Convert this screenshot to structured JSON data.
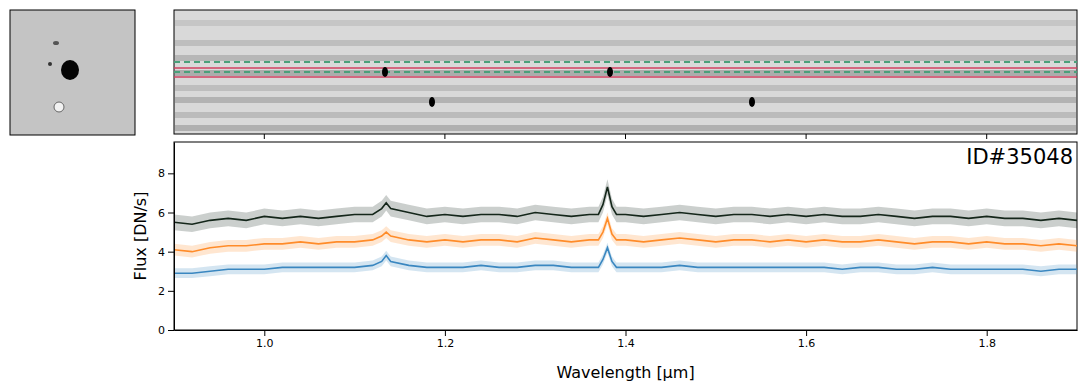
{
  "chart_data": {
    "type": "line",
    "annotation": "ID#35048",
    "x_label": "Wavelength [μm]",
    "y_label": "Flux [DN/s]",
    "x": [
      0.9,
      0.92,
      0.94,
      0.96,
      0.98,
      1.0,
      1.02,
      1.04,
      1.06,
      1.08,
      1.1,
      1.12,
      1.13,
      1.135,
      1.14,
      1.16,
      1.18,
      1.2,
      1.22,
      1.24,
      1.26,
      1.28,
      1.3,
      1.32,
      1.34,
      1.36,
      1.37,
      1.375,
      1.38,
      1.385,
      1.39,
      1.4,
      1.42,
      1.44,
      1.46,
      1.48,
      1.5,
      1.52,
      1.54,
      1.56,
      1.58,
      1.6,
      1.62,
      1.64,
      1.66,
      1.68,
      1.7,
      1.72,
      1.74,
      1.76,
      1.78,
      1.8,
      1.82,
      1.84,
      1.86,
      1.88,
      1.9
    ],
    "series": [
      {
        "color": "#14261a",
        "error": 0.4,
        "values": [
          5.5,
          5.4,
          5.6,
          5.7,
          5.6,
          5.8,
          5.7,
          5.8,
          5.7,
          5.8,
          5.9,
          5.9,
          6.2,
          6.5,
          6.2,
          6.0,
          5.8,
          5.9,
          5.8,
          5.9,
          5.9,
          5.8,
          6.0,
          5.9,
          5.8,
          5.9,
          5.9,
          6.4,
          7.3,
          6.3,
          5.9,
          5.9,
          5.8,
          5.9,
          6.0,
          5.9,
          5.8,
          5.9,
          5.9,
          5.8,
          5.9,
          5.8,
          5.9,
          5.8,
          5.8,
          5.9,
          5.8,
          5.7,
          5.8,
          5.8,
          5.7,
          5.8,
          5.7,
          5.7,
          5.6,
          5.7,
          5.6
        ]
      },
      {
        "color": "#ff8c2a",
        "error": 0.3,
        "values": [
          4.1,
          4.0,
          4.2,
          4.3,
          4.3,
          4.4,
          4.4,
          4.5,
          4.4,
          4.5,
          4.5,
          4.6,
          4.8,
          5.0,
          4.8,
          4.6,
          4.5,
          4.6,
          4.5,
          4.6,
          4.6,
          4.5,
          4.7,
          4.6,
          4.5,
          4.6,
          4.6,
          5.0,
          5.7,
          4.9,
          4.6,
          4.6,
          4.5,
          4.6,
          4.7,
          4.6,
          4.5,
          4.6,
          4.6,
          4.5,
          4.6,
          4.5,
          4.6,
          4.5,
          4.5,
          4.6,
          4.5,
          4.4,
          4.5,
          4.5,
          4.4,
          4.5,
          4.4,
          4.4,
          4.3,
          4.4,
          4.3
        ]
      },
      {
        "color": "#3a87c0",
        "error": 0.25,
        "values": [
          2.9,
          2.9,
          3.0,
          3.1,
          3.1,
          3.1,
          3.2,
          3.2,
          3.2,
          3.2,
          3.2,
          3.3,
          3.5,
          3.8,
          3.5,
          3.3,
          3.2,
          3.2,
          3.2,
          3.3,
          3.2,
          3.2,
          3.3,
          3.3,
          3.2,
          3.2,
          3.2,
          3.6,
          4.2,
          3.5,
          3.2,
          3.2,
          3.2,
          3.2,
          3.3,
          3.2,
          3.2,
          3.2,
          3.2,
          3.2,
          3.2,
          3.2,
          3.2,
          3.1,
          3.2,
          3.2,
          3.1,
          3.1,
          3.2,
          3.1,
          3.1,
          3.1,
          3.1,
          3.1,
          3.0,
          3.1,
          3.1
        ]
      }
    ],
    "xlim": [
      0.9,
      1.9
    ],
    "ylim": [
      0,
      9.6
    ],
    "xticks": [
      {
        "value": 1,
        "label": "1.0"
      },
      1.2,
      1.4,
      1.6,
      1.8
    ],
    "yticks": [
      0,
      2,
      4,
      6,
      8
    ],
    "grid": false
  }
}
